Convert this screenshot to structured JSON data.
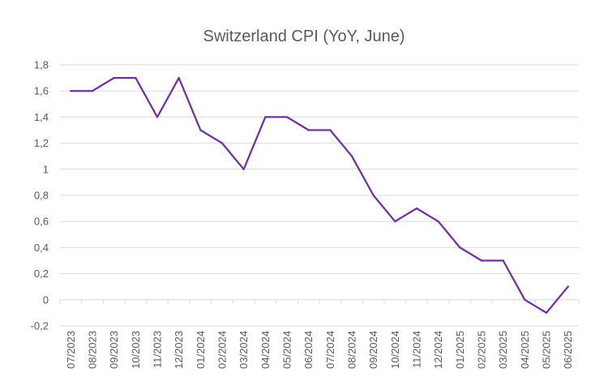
{
  "chart_data": {
    "type": "line",
    "title": "Switzerland CPI (YoY, June)",
    "xlabel": "",
    "ylabel": "",
    "categories": [
      "07/2023",
      "08/2023",
      "09/2023",
      "10/2023",
      "11/2023",
      "12/2023",
      "01/2024",
      "02/2024",
      "03/2024",
      "04/2024",
      "05/2024",
      "06/2024",
      "07/2024",
      "08/2024",
      "09/2024",
      "10/2024",
      "11/2024",
      "12/2024",
      "01/2025",
      "02/2025",
      "03/2025",
      "04/2025",
      "05/2025",
      "06/2025"
    ],
    "series": [
      {
        "values": [
          1.6,
          1.6,
          1.7,
          1.7,
          1.4,
          1.7,
          1.3,
          1.2,
          1.0,
          1.4,
          1.4,
          1.3,
          1.3,
          1.1,
          0.8,
          0.6,
          0.7,
          0.6,
          0.4,
          0.3,
          0.3,
          0.0,
          -0.1,
          0.1
        ],
        "color": "#7030a0"
      }
    ],
    "ylim": [
      -0.2,
      1.8
    ],
    "yticks": [
      "-0,2",
      "0",
      "0,2",
      "0,4",
      "0,6",
      "0,8",
      "1",
      "1,2",
      "1,4",
      "1,6",
      "1,8"
    ],
    "grid": true,
    "legend": "none"
  }
}
